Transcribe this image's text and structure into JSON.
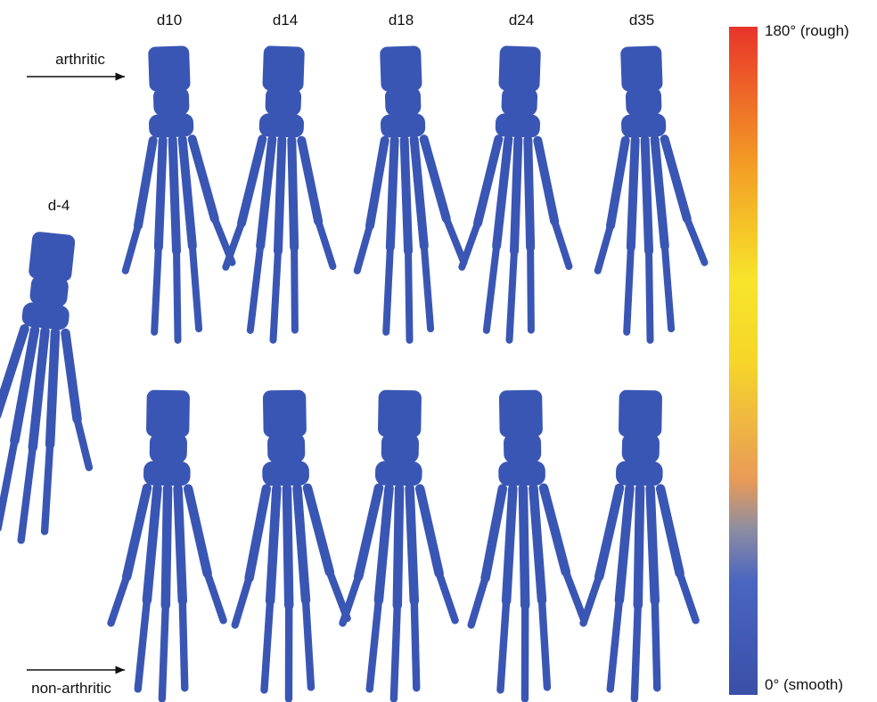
{
  "column_labels": [
    "d10",
    "d14",
    "d18",
    "d24",
    "d35"
  ],
  "baseline_label": "d-4",
  "row_labels": {
    "arthritic": "arthritic",
    "non_arthritic": "non-arthritic"
  },
  "colorbar": {
    "max_label": "180° (rough)",
    "min_label": "0° (smooth)"
  }
}
